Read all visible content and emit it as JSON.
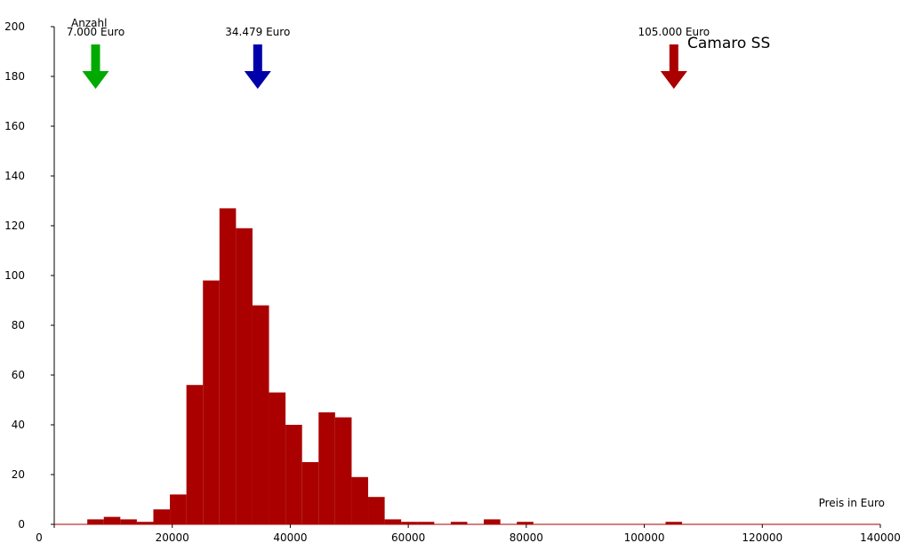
{
  "chart_data": {
    "type": "bar",
    "title": "Camaro SS",
    "xlabel": "Preis in Euro",
    "ylabel": "Anzahl",
    "xlim": [
      0,
      140000
    ],
    "ylim": [
      0,
      200
    ],
    "grid": false,
    "bin_width": 2800,
    "bar_color": "#AA0000",
    "x_ticks": [
      0,
      20000,
      40000,
      60000,
      80000,
      100000,
      120000,
      140000
    ],
    "y_ticks": [
      0,
      20,
      40,
      60,
      80,
      100,
      120,
      140,
      160,
      180,
      200
    ],
    "bins": [
      {
        "start": 5600,
        "count": 2
      },
      {
        "start": 8400,
        "count": 3
      },
      {
        "start": 11200,
        "count": 2
      },
      {
        "start": 14000,
        "count": 1
      },
      {
        "start": 16800,
        "count": 6
      },
      {
        "start": 19600,
        "count": 12
      },
      {
        "start": 22400,
        "count": 56
      },
      {
        "start": 25200,
        "count": 98
      },
      {
        "start": 28000,
        "count": 127
      },
      {
        "start": 30800,
        "count": 119
      },
      {
        "start": 33600,
        "count": 88
      },
      {
        "start": 36400,
        "count": 53
      },
      {
        "start": 39200,
        "count": 40
      },
      {
        "start": 42000,
        "count": 25
      },
      {
        "start": 44800,
        "count": 45
      },
      {
        "start": 47600,
        "count": 43
      },
      {
        "start": 50400,
        "count": 19
      },
      {
        "start": 53200,
        "count": 11
      },
      {
        "start": 56000,
        "count": 2
      },
      {
        "start": 58800,
        "count": 1
      },
      {
        "start": 61600,
        "count": 1
      },
      {
        "start": 67200,
        "count": 1
      },
      {
        "start": 72800,
        "count": 2
      },
      {
        "start": 78400,
        "count": 1
      },
      {
        "start": 103600,
        "count": 1
      }
    ],
    "markers": [
      {
        "label": "7.000 Euro",
        "value": 7000,
        "color": "#00AA00"
      },
      {
        "label": "34.479 Euro",
        "value": 34479,
        "color": "#0000AA"
      },
      {
        "label": "105.000 Euro",
        "value": 105000,
        "color": "#AA0000"
      }
    ]
  }
}
